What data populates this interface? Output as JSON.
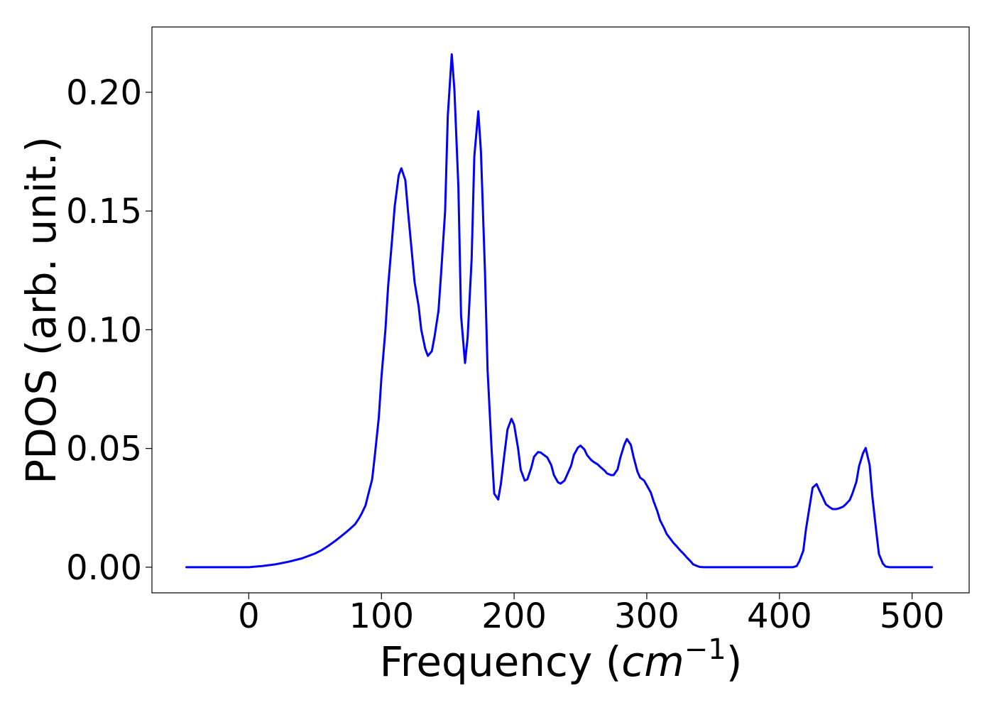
{
  "chart_data": {
    "type": "line",
    "title": "",
    "xlabel": "Frequency (",
    "xlabel_math": "cm",
    "xlabel_sup": "−1",
    "xlabel_close": ")",
    "ylabel": "PDOS (arb. unit.)",
    "xlim": [
      -73,
      543
    ],
    "ylim": [
      -0.0108,
      0.2275
    ],
    "xticks": [
      0,
      100,
      200,
      300,
      400,
      500
    ],
    "xtick_labels": [
      "0",
      "100",
      "200",
      "300",
      "400",
      "500"
    ],
    "yticks": [
      0.0,
      0.05,
      0.1,
      0.15,
      0.2
    ],
    "ytick_labels": [
      "0.00",
      "0.05",
      "0.10",
      "0.15",
      "0.20"
    ],
    "grid": false,
    "series": [
      {
        "color": "#0000ff",
        "x": [
          -47,
          0,
          10,
          20,
          30,
          40,
          50,
          55,
          60,
          65,
          70,
          75,
          80,
          83,
          85,
          88,
          90,
          93,
          95,
          98,
          100,
          103,
          105,
          108,
          110,
          113,
          115,
          118,
          120,
          123,
          125,
          128,
          130,
          133,
          135,
          138,
          140,
          143,
          145,
          148,
          150,
          153,
          155,
          158,
          160,
          163,
          165,
          168,
          170,
          173,
          175,
          178,
          180,
          183,
          185,
          188,
          190,
          193,
          195,
          198,
          200,
          203,
          205,
          208,
          210,
          213,
          215,
          218,
          220,
          225,
          228,
          230,
          233,
          235,
          238,
          240,
          243,
          245,
          248,
          250,
          253,
          255,
          258,
          260,
          263,
          265,
          268,
          270,
          273,
          275,
          278,
          280,
          283,
          285,
          288,
          290,
          293,
          295,
          298,
          300,
          303,
          305,
          308,
          310,
          313,
          315,
          318,
          320,
          323,
          325,
          328,
          330,
          333,
          335,
          338,
          340,
          343,
          345,
          348,
          350,
          353,
          355,
          358,
          360,
          363,
          365,
          370,
          380,
          390,
          400,
          403,
          405,
          408,
          410,
          413,
          415,
          418,
          420,
          423,
          425,
          428,
          430,
          433,
          435,
          438,
          440,
          443,
          445,
          448,
          450,
          453,
          455,
          458,
          460,
          463,
          465,
          468,
          470,
          473,
          475,
          478,
          480,
          483,
          485,
          490,
          500,
          515
        ],
        "y": [
          0.0,
          0.0,
          0.0005,
          0.0012,
          0.0023,
          0.0037,
          0.0058,
          0.0072,
          0.009,
          0.011,
          0.0132,
          0.0155,
          0.018,
          0.0205,
          0.0225,
          0.026,
          0.0305,
          0.037,
          0.047,
          0.063,
          0.08,
          0.1,
          0.118,
          0.138,
          0.152,
          0.165,
          0.168,
          0.163,
          0.15,
          0.132,
          0.12,
          0.11,
          0.1,
          0.092,
          0.089,
          0.091,
          0.097,
          0.108,
          0.124,
          0.15,
          0.19,
          0.216,
          0.201,
          0.16,
          0.106,
          0.086,
          0.097,
          0.13,
          0.173,
          0.192,
          0.175,
          0.125,
          0.083,
          0.05,
          0.031,
          0.0285,
          0.035,
          0.049,
          0.058,
          0.0625,
          0.06,
          0.05,
          0.041,
          0.0365,
          0.037,
          0.042,
          0.0465,
          0.0485,
          0.0483,
          0.0462,
          0.043,
          0.0388,
          0.0358,
          0.0352,
          0.0365,
          0.039,
          0.0428,
          0.0472,
          0.0503,
          0.0512,
          0.0496,
          0.0472,
          0.0452,
          0.0443,
          0.0433,
          0.0422,
          0.0408,
          0.0395,
          0.0388,
          0.0388,
          0.0412,
          0.046,
          0.0515,
          0.054,
          0.0515,
          0.0465,
          0.0402,
          0.0377,
          0.0365,
          0.0345,
          0.0315,
          0.028,
          0.0235,
          0.0198,
          0.0165,
          0.014,
          0.0118,
          0.0103,
          0.0085,
          0.0072,
          0.0055,
          0.0042,
          0.0025,
          0.0012,
          0.0005,
          0.0001,
          0.0,
          0.0,
          0.0,
          0.0,
          0.0,
          0.0,
          0.0,
          0.0,
          0.0,
          0.0,
          0.0,
          0.0,
          0.0,
          0.0,
          0.0,
          0.0,
          0.0,
          0.0,
          0.0005,
          0.0025,
          0.007,
          0.016,
          0.0265,
          0.0335,
          0.035,
          0.0325,
          0.029,
          0.0265,
          0.0252,
          0.0245,
          0.0245,
          0.0248,
          0.0255,
          0.0265,
          0.0283,
          0.031,
          0.036,
          0.0425,
          0.048,
          0.0502,
          0.043,
          0.03,
          0.015,
          0.0055,
          0.0015,
          0.0003,
          0.0,
          0.0,
          0.0,
          0.0,
          0.0
        ]
      }
    ]
  }
}
